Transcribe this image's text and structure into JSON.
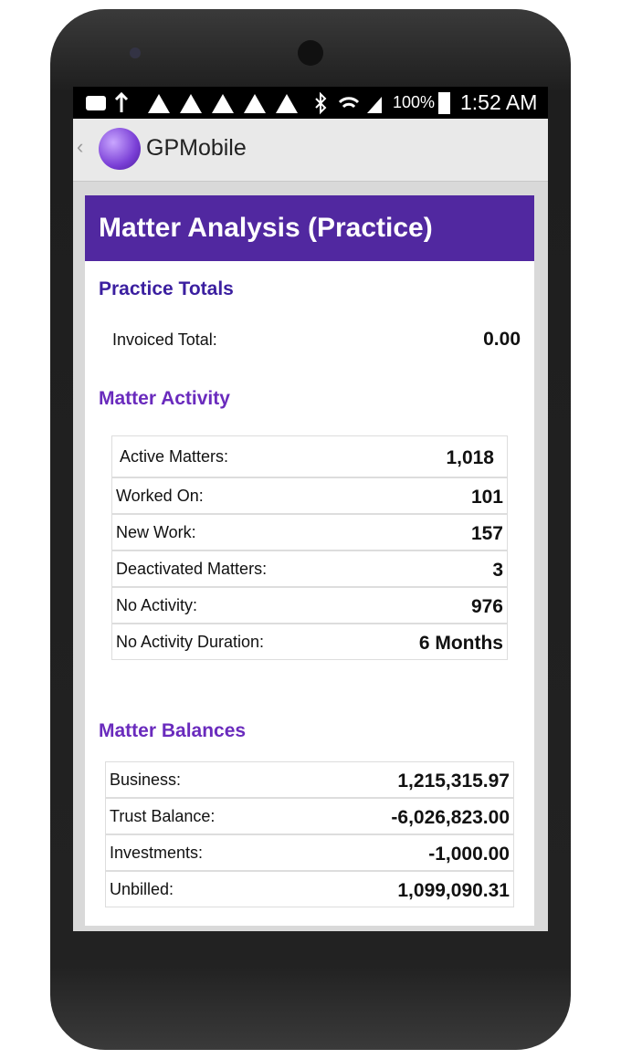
{
  "status_bar": {
    "battery": "100%",
    "time": "1:52 AM"
  },
  "app_bar": {
    "title": "GPMobile"
  },
  "header": {
    "title": "Matter Analysis (Practice)"
  },
  "sections": [
    {
      "title": "Practice Totals",
      "rows": [
        [
          "Invoiced Total:",
          "0.00"
        ]
      ]
    },
    {
      "title": "Matter Activity",
      "rows": [
        [
          "Active Matters:",
          "1,018"
        ],
        [
          "Worked On:",
          "101"
        ],
        [
          "New Work:",
          "157"
        ],
        [
          "Deactivated Matters:",
          "3"
        ],
        [
          "No Activity:",
          "976"
        ],
        [
          "No Activity Duration:",
          "6 Months"
        ]
      ]
    },
    {
      "title": "Matter Balances",
      "rows": [
        [
          "Business:",
          "1,215,315.97"
        ],
        [
          "Trust Balance:",
          "-6,026,823.00"
        ],
        [
          "Investments:",
          "-1,000.00"
        ],
        [
          "Unbilled:",
          "1,099,090.31"
        ]
      ]
    }
  ]
}
